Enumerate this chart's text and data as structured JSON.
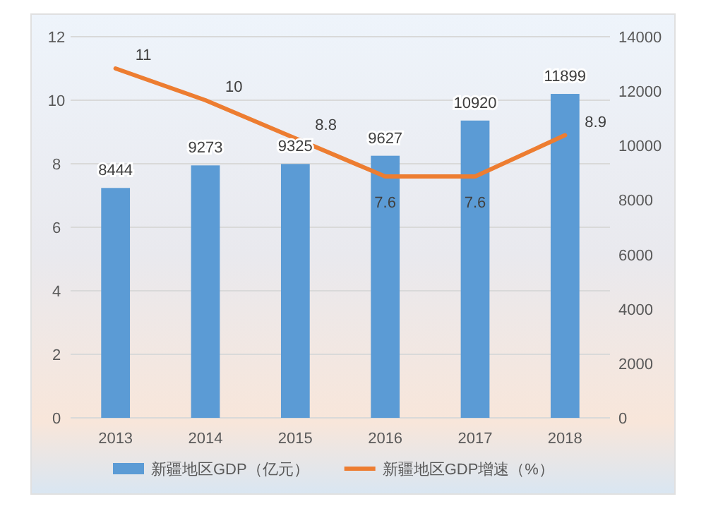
{
  "chart_data": {
    "type": "bar",
    "categories": [
      "2013",
      "2014",
      "2015",
      "2016",
      "2017",
      "2018"
    ],
    "series": [
      {
        "name": "新疆地区GDP（亿元）",
        "axis": "y2",
        "color": "#5b9bd5",
        "values": [
          8444,
          9273,
          9325,
          9627,
          10920,
          11899
        ]
      },
      {
        "name": "新疆地区GDP增速（%）",
        "type": "line",
        "color": "#ed7d31",
        "values": [
          11,
          10,
          8.8,
          7.6,
          7.6,
          8.9
        ]
      }
    ],
    "ylim": [
      0,
      12
    ],
    "yticks": [
      0,
      2,
      4,
      6,
      8,
      10,
      12
    ],
    "y2lim": [
      0,
      14000
    ],
    "y2ticks": [
      0,
      2000,
      4000,
      6000,
      8000,
      10000,
      12000,
      14000
    ],
    "grid": "y",
    "legend": "bottom",
    "data_labels": true,
    "marker": "none",
    "line_style": "solid"
  }
}
